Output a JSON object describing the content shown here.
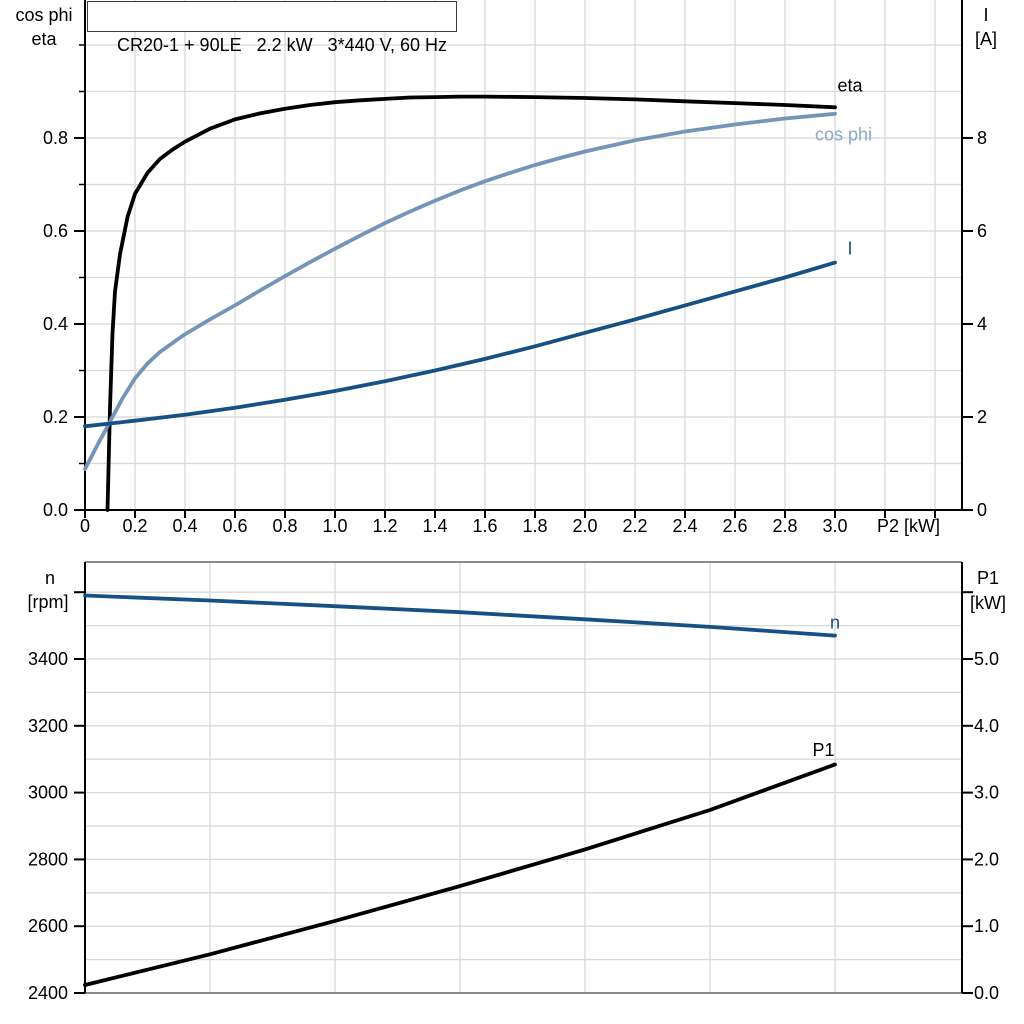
{
  "title_box": {
    "text": "CR20-1 + 90LE   2.2 kW   3*440 V, 60 Hz"
  },
  "colors": {
    "black": "#000000",
    "dark_blue": "#175084",
    "light_blue": "#7495B8",
    "light_blue_label": "#8CA9C6",
    "grid": "#D8D8D8",
    "frame_gray": "#8A8A8A"
  },
  "chart_data": [
    {
      "id": "motor-electrical-curves",
      "type": "line",
      "title": "CR20-1 + 90LE   2.2 kW   3*440 V, 60 Hz",
      "x_axis": {
        "label": "P2 [kW]",
        "min": 0,
        "max": 3.5,
        "grid_step": 0.2,
        "tick_values": [
          0,
          0.2,
          0.4,
          0.6,
          0.8,
          1.0,
          1.2,
          1.4,
          1.6,
          1.8,
          2.0,
          2.2,
          2.4,
          2.6,
          2.8,
          3.0
        ],
        "tick_labels": [
          "0",
          "0.2",
          "0.4",
          "0.6",
          "0.8",
          "1.0",
          "1.2",
          "1.4",
          "1.6",
          "1.8",
          "2.0",
          "2.2",
          "2.4",
          "2.6",
          "2.8",
          "3.0"
        ]
      },
      "y_left": {
        "title_lines": [
          "cos phi",
          "eta"
        ],
        "min": 0,
        "max": 1.1,
        "grid_step": 0.1,
        "tick_values": [
          0,
          0.2,
          0.4,
          0.6,
          0.8
        ],
        "tick_labels": [
          "0.0",
          "0.2",
          "0.4",
          "0.6",
          "0.8"
        ],
        "minor_tick_values": [
          0.1,
          0.3,
          0.5,
          0.7,
          0.9,
          1.0
        ]
      },
      "y_right": {
        "title_lines": [
          "I",
          "[A]"
        ],
        "min": 0,
        "max": 11,
        "tick_values": [
          0,
          2,
          4,
          6,
          8
        ],
        "tick_labels": [
          "0",
          "2",
          "4",
          "6",
          "8"
        ]
      },
      "series": [
        {
          "name": "eta",
          "axis": "left",
          "color_key": "black",
          "label": {
            "text": "eta",
            "x": 3.01,
            "y": 0.9,
            "color_key": "black"
          },
          "points": [
            [
              0.09,
              0
            ],
            [
              0.1,
              0.22
            ],
            [
              0.11,
              0.38
            ],
            [
              0.12,
              0.47
            ],
            [
              0.14,
              0.55
            ],
            [
              0.17,
              0.63
            ],
            [
              0.2,
              0.68
            ],
            [
              0.25,
              0.725
            ],
            [
              0.3,
              0.755
            ],
            [
              0.35,
              0.775
            ],
            [
              0.4,
              0.792
            ],
            [
              0.5,
              0.82
            ],
            [
              0.6,
              0.84
            ],
            [
              0.7,
              0.853
            ],
            [
              0.8,
              0.863
            ],
            [
              0.9,
              0.871
            ],
            [
              1.0,
              0.877
            ],
            [
              1.1,
              0.881
            ],
            [
              1.2,
              0.884
            ],
            [
              1.3,
              0.887
            ],
            [
              1.4,
              0.888
            ],
            [
              1.5,
              0.889
            ],
            [
              1.6,
              0.889
            ],
            [
              1.8,
              0.888
            ],
            [
              2.0,
              0.886
            ],
            [
              2.2,
              0.883
            ],
            [
              2.4,
              0.879
            ],
            [
              2.6,
              0.875
            ],
            [
              2.8,
              0.871
            ],
            [
              3.0,
              0.866
            ]
          ]
        },
        {
          "name": "cos phi",
          "axis": "left",
          "color_key": "light_blue",
          "label": {
            "text": "cos phi",
            "x": 2.92,
            "y": 0.795,
            "color_key": "light_blue_label"
          },
          "points": [
            [
              0,
              0.088
            ],
            [
              0.05,
              0.14
            ],
            [
              0.1,
              0.19
            ],
            [
              0.15,
              0.24
            ],
            [
              0.2,
              0.283
            ],
            [
              0.25,
              0.315
            ],
            [
              0.3,
              0.34
            ],
            [
              0.4,
              0.378
            ],
            [
              0.5,
              0.41
            ],
            [
              0.6,
              0.44
            ],
            [
              0.7,
              0.472
            ],
            [
              0.8,
              0.503
            ],
            [
              0.9,
              0.533
            ],
            [
              1.0,
              0.562
            ],
            [
              1.1,
              0.59
            ],
            [
              1.2,
              0.617
            ],
            [
              1.3,
              0.642
            ],
            [
              1.4,
              0.665
            ],
            [
              1.5,
              0.687
            ],
            [
              1.6,
              0.707
            ],
            [
              1.7,
              0.725
            ],
            [
              1.8,
              0.742
            ],
            [
              1.9,
              0.757
            ],
            [
              2.0,
              0.771
            ],
            [
              2.2,
              0.795
            ],
            [
              2.4,
              0.814
            ],
            [
              2.6,
              0.829
            ],
            [
              2.8,
              0.842
            ],
            [
              3.0,
              0.852
            ]
          ]
        },
        {
          "name": "I",
          "axis": "right",
          "color_key": "dark_blue",
          "label": {
            "text": "I",
            "x": 3.05,
            "y": 5.5,
            "color_key": "dark_blue"
          },
          "points": [
            [
              0,
              1.8
            ],
            [
              0.2,
              1.92
            ],
            [
              0.4,
              2.05
            ],
            [
              0.6,
              2.2
            ],
            [
              0.8,
              2.37
            ],
            [
              1.0,
              2.56
            ],
            [
              1.2,
              2.77
            ],
            [
              1.4,
              3.0
            ],
            [
              1.6,
              3.25
            ],
            [
              1.8,
              3.52
            ],
            [
              2.0,
              3.81
            ],
            [
              2.2,
              4.1
            ],
            [
              2.4,
              4.4
            ],
            [
              2.6,
              4.7
            ],
            [
              2.8,
              5.0
            ],
            [
              3.0,
              5.32
            ]
          ]
        }
      ]
    },
    {
      "id": "speed-and-input-power-curves",
      "type": "line",
      "x_axis": {
        "label": "",
        "min": 0,
        "max": 3.5,
        "grid_step": 0.5,
        "tick_values": [],
        "tick_labels": []
      },
      "y_left": {
        "title_lines": [
          "n",
          "[rpm]"
        ],
        "min": 2400,
        "max": 3690,
        "grid_step": 100,
        "tick_values": [
          2400,
          2600,
          2800,
          3000,
          3200,
          3400,
          3600
        ],
        "tick_labels": [
          "2400",
          "2600",
          "2800",
          "3000",
          "3200",
          "3400",
          ""
        ]
      },
      "y_right": {
        "title_lines": [
          "P1",
          "[kW]"
        ],
        "min": 0,
        "max": 6.45,
        "tick_values": [
          0,
          1,
          2,
          3,
          4,
          5,
          6
        ],
        "tick_labels": [
          "0.0",
          "1.0",
          "2.0",
          "3.0",
          "4.0",
          "5.0",
          ""
        ]
      },
      "series": [
        {
          "name": "n",
          "axis": "left",
          "color_key": "dark_blue",
          "label": {
            "text": "n",
            "x": 2.98,
            "y": 3492,
            "color_key": "dark_blue"
          },
          "points": [
            [
              0,
              3590
            ],
            [
              0.5,
              3575
            ],
            [
              1.0,
              3558
            ],
            [
              1.5,
              3540
            ],
            [
              2.0,
              3519
            ],
            [
              2.5,
              3496
            ],
            [
              3.0,
              3470
            ]
          ]
        },
        {
          "name": "P1",
          "axis": "right",
          "color_key": "black",
          "label": {
            "text": "P1",
            "x": 2.91,
            "y": 3.55,
            "color_key": "black"
          },
          "points": [
            [
              0,
              0.12
            ],
            [
              0.5,
              0.58
            ],
            [
              1.0,
              1.08
            ],
            [
              1.5,
              1.6
            ],
            [
              2.0,
              2.15
            ],
            [
              2.5,
              2.74
            ],
            [
              3.0,
              3.42
            ]
          ]
        }
      ]
    }
  ]
}
